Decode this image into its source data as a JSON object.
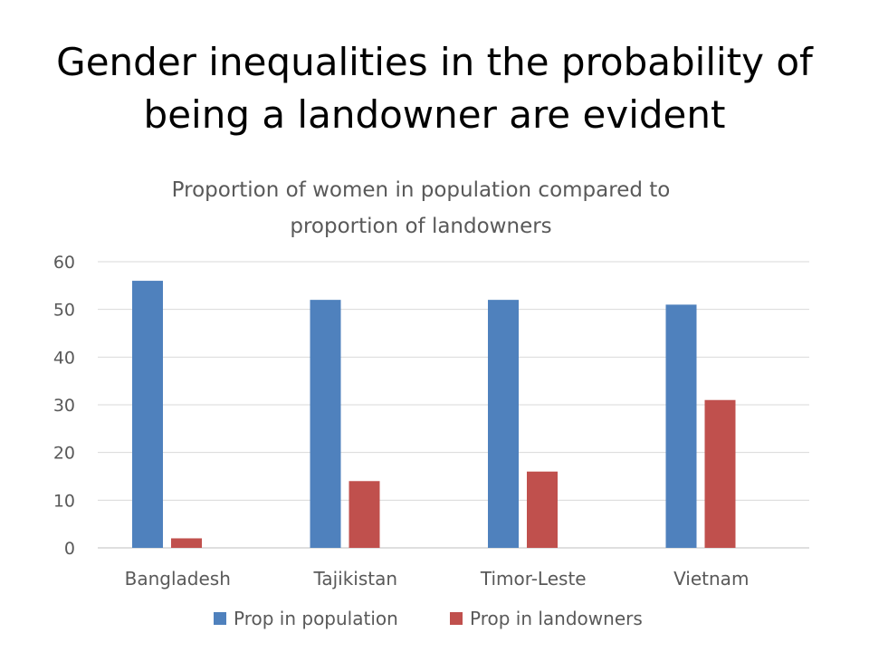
{
  "slide": {
    "title_lines": [
      "Gender inequalities in the probability of",
      "being a landowner are evident"
    ]
  },
  "chart_data": {
    "type": "bar",
    "title_lines": [
      "Proportion of women in population compared to",
      "proportion of landowners"
    ],
    "categories": [
      "Bangladesh",
      "Tajikistan",
      "Timor-Leste",
      "Vietnam"
    ],
    "series": [
      {
        "name": "Prop in population",
        "values": [
          56,
          52,
          52,
          51
        ],
        "color": "#4f81bd"
      },
      {
        "name": "Prop in landowners",
        "values": [
          2,
          14,
          16,
          31
        ],
        "color": "#c0504d"
      }
    ],
    "ylim": [
      0,
      60
    ],
    "yticks": [
      0,
      10,
      20,
      30,
      40,
      50,
      60
    ],
    "grid": true,
    "legend_position": "bottom"
  }
}
